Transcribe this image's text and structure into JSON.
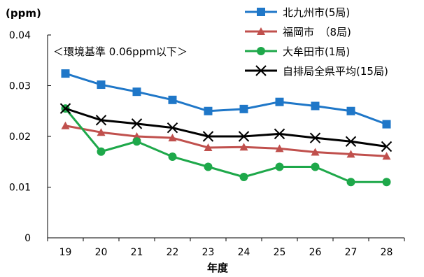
{
  "chart_data": {
    "type": "line",
    "unit_label": "(ppm)",
    "xlabel": "年度",
    "x": [
      "19",
      "20",
      "21",
      "22",
      "23",
      "24",
      "25",
      "26",
      "27",
      "28"
    ],
    "ylim": [
      0,
      0.04
    ],
    "yticks": [
      "0",
      "0.01",
      "0.02",
      "0.03",
      "0.04"
    ],
    "annotation": "＜環境基準 0.06ppm以下＞",
    "legend_position": "top-right",
    "grid": false,
    "series": [
      {
        "name": "北九州市(5局)",
        "color": "#1f77c8",
        "marker": "square",
        "values": [
          0.0324,
          0.0302,
          0.0288,
          0.0272,
          0.025,
          0.0254,
          0.0268,
          0.026,
          0.025,
          0.0224
        ]
      },
      {
        "name": "福岡市　（8局)",
        "color": "#c0504d",
        "marker": "triangle",
        "values": [
          0.0221,
          0.0208,
          0.02,
          0.0197,
          0.0178,
          0.0179,
          0.0176,
          0.0169,
          0.0165,
          0.0161
        ]
      },
      {
        "name": "大牟田市(1局)",
        "color": "#1ea84a",
        "marker": "circle",
        "values": [
          0.0255,
          0.017,
          0.019,
          0.016,
          0.014,
          0.012,
          0.014,
          0.014,
          0.011,
          0.011
        ]
      },
      {
        "name": "自排局全県平均(15局)",
        "color": "#000000",
        "marker": "x",
        "values": [
          0.0255,
          0.0232,
          0.0225,
          0.0217,
          0.02,
          0.02,
          0.0205,
          0.0197,
          0.019,
          0.018
        ]
      }
    ]
  }
}
